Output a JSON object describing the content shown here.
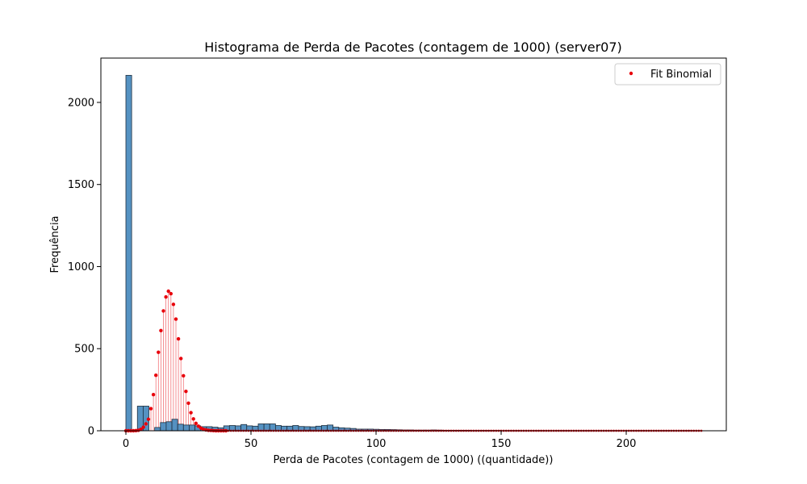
{
  "chart_data": {
    "type": "bar",
    "title": "Histograma de Perda de Pacotes (contagem de 1000) (server07)",
    "xlabel": "Perda de Pacotes (contagem de 1000) ((quantidade))",
    "ylabel": "Frequência",
    "xlim": [
      -10,
      240
    ],
    "ylim": [
      0,
      2270
    ],
    "xticks": [
      0,
      50,
      100,
      150,
      200
    ],
    "yticks": [
      0,
      500,
      1000,
      1500,
      2000
    ],
    "grid": false,
    "legend": {
      "placement": "top-right",
      "entries": [
        "Fit Binomial"
      ]
    },
    "colors": {
      "histogram": "#4c8cbf",
      "fit": "#e8000b"
    },
    "histogram": {
      "bin_width": 2.3,
      "x_start": 0,
      "counts": [
        2165,
        0,
        150,
        150,
        0,
        20,
        50,
        55,
        70,
        40,
        35,
        35,
        30,
        25,
        25,
        22,
        18,
        30,
        32,
        30,
        38,
        30,
        28,
        42,
        42,
        42,
        32,
        28,
        28,
        32,
        26,
        25,
        24,
        28,
        32,
        35,
        22,
        18,
        16,
        14,
        10,
        10,
        10,
        9,
        8,
        8,
        7,
        6,
        5,
        5,
        4,
        4,
        4,
        5,
        4,
        3,
        3,
        3,
        3,
        3,
        2,
        2,
        2,
        2,
        2,
        1,
        1,
        1,
        1,
        1,
        1,
        1,
        1,
        1,
        1,
        1,
        1,
        1,
        1,
        1,
        1,
        1,
        1,
        1,
        1,
        1,
        1,
        1,
        1,
        1,
        1,
        1,
        1,
        1,
        1,
        1,
        1,
        1,
        1,
        1
      ]
    },
    "fit_series": {
      "name": "Fit Binomial",
      "x": [
        0,
        1,
        2,
        3,
        4,
        5,
        6,
        7,
        8,
        9,
        10,
        11,
        12,
        13,
        14,
        15,
        16,
        17,
        18,
        19,
        20,
        21,
        22,
        23,
        24,
        25,
        26,
        27,
        28,
        29,
        30,
        31,
        32,
        33,
        34,
        35,
        36,
        37,
        38,
        39,
        40
      ],
      "y": [
        0,
        0,
        0,
        0,
        1,
        3,
        9,
        22,
        42,
        70,
        135,
        220,
        338,
        478,
        610,
        730,
        815,
        850,
        835,
        770,
        680,
        560,
        440,
        335,
        240,
        168,
        110,
        72,
        45,
        28,
        16,
        9,
        5,
        3,
        2,
        1,
        0,
        0,
        0,
        0,
        0
      ],
      "x_max": 230
    }
  }
}
